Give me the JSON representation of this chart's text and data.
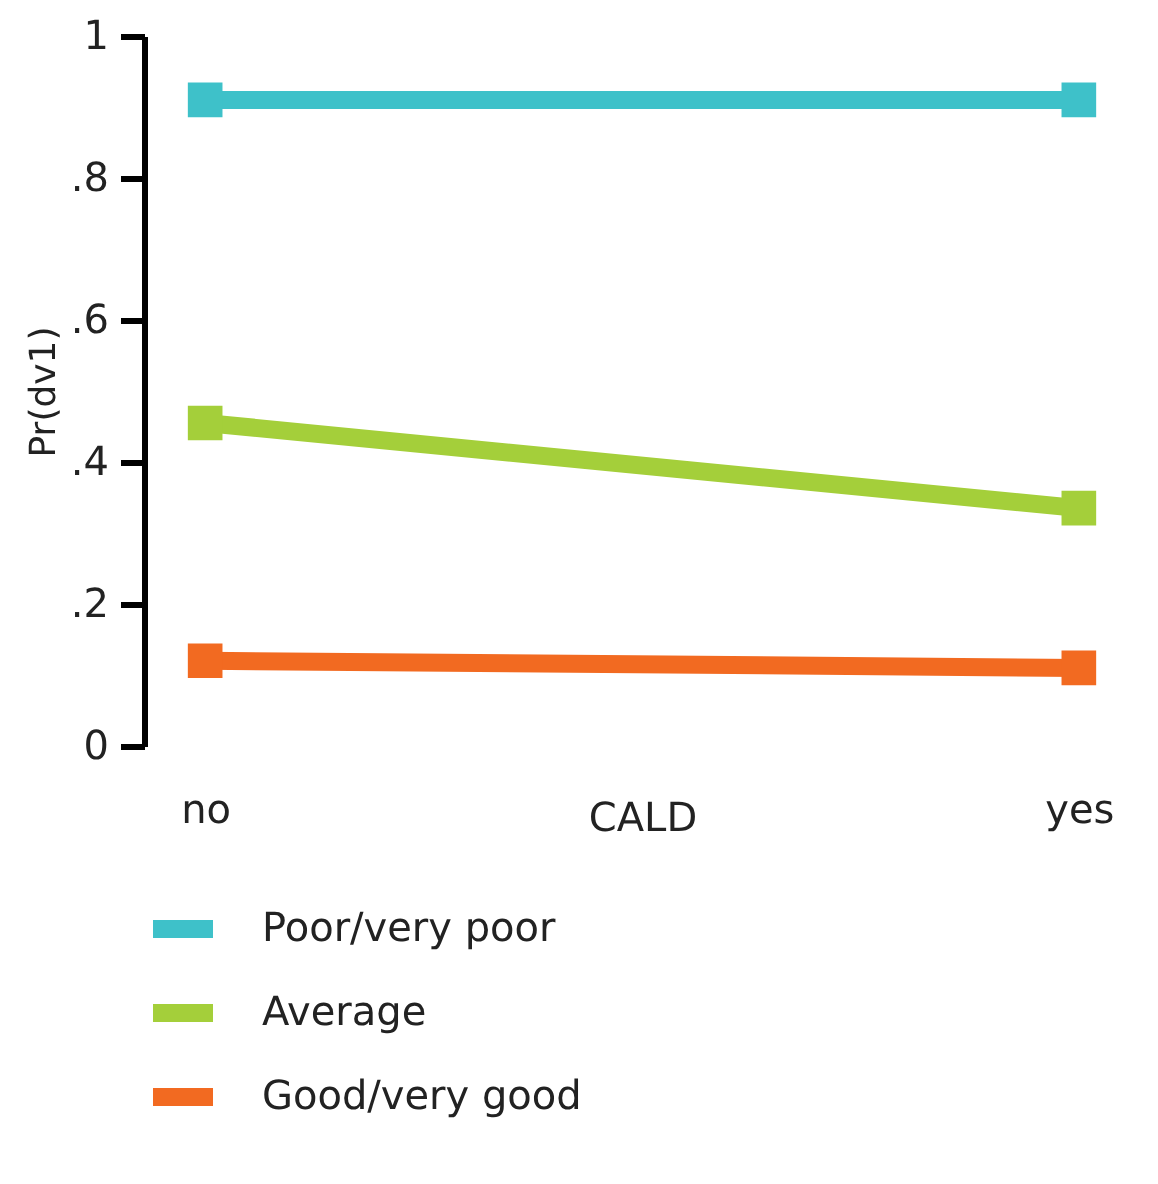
{
  "chart_data": {
    "type": "line",
    "xlabel": "CALD",
    "ylabel": "Pr(dv1)",
    "categories": [
      "no",
      "yes"
    ],
    "series": [
      {
        "name": "Poor/very poor",
        "color": "#3ec1c9",
        "values": [
          0.91,
          0.91
        ]
      },
      {
        "name": "Average",
        "color": "#a4cf3a",
        "values": [
          0.455,
          0.335
        ]
      },
      {
        "name": "Good/very good",
        "color": "#f26a21",
        "values": [
          0.12,
          0.11
        ]
      }
    ],
    "ylim": [
      0,
      1
    ],
    "yticks": [
      {
        "value": 0,
        "label": "0"
      },
      {
        "value": 0.2,
        "label": ".2"
      },
      {
        "value": 0.4,
        "label": ".4"
      },
      {
        "value": 0.6,
        "label": ".6"
      },
      {
        "value": 0.8,
        "label": ".8"
      },
      {
        "value": 1,
        "label": "1"
      }
    ],
    "grid": false,
    "legend": "bottom",
    "marker": "square",
    "line_style": "solid"
  }
}
